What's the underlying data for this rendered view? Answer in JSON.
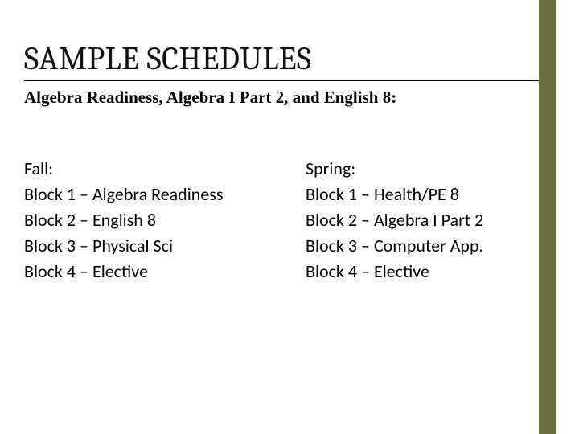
{
  "title": "SAMPLE SCHEDULES",
  "subtitle": "Algebra Readiness, Algebra I Part 2, and English 8:",
  "fall": {
    "heading": "Fall:",
    "blocks": [
      "Block 1 – Algebra Readiness",
      "Block 2 – English 8",
      "Block 3 – Physical Sci",
      "Block 4 – Elective"
    ]
  },
  "spring": {
    "heading": "Spring:",
    "blocks": [
      "Block 1 – Health/PE 8",
      "Block 2 – Algebra I Part 2",
      "Block 3 – Computer App.",
      "Block 4 – Elective"
    ]
  },
  "accent_color": "#6b6e3f"
}
